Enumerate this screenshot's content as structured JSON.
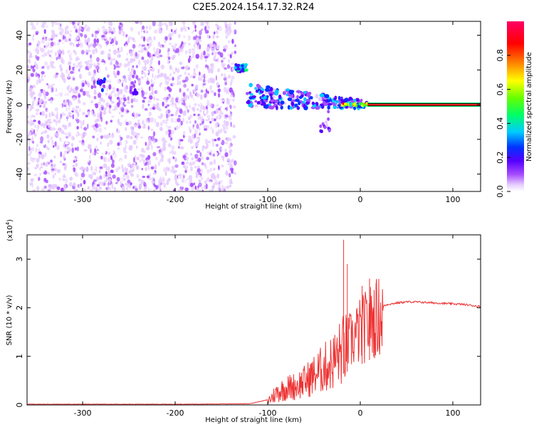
{
  "title": "C2E5.2024.154.17.32.R24",
  "chart_data": [
    {
      "type": "heatmap",
      "xlabel": "Height of straight line (km)",
      "ylabel": "Frequency (Hz)",
      "xlim": [
        -360,
        130
      ],
      "ylim": [
        -50,
        48
      ],
      "xticks": [
        -300,
        -200,
        -100,
        0,
        100
      ],
      "yticks": [
        -40,
        -20,
        0,
        20,
        40
      ],
      "colorbar": {
        "label": "Normalized spectral amplitude",
        "range": [
          0,
          1
        ],
        "ticks": [
          "0.0",
          "0.2",
          "0.4",
          "0.6",
          "0.8"
        ],
        "colors": [
          "#ffffff",
          "#e6ccff",
          "#a64dff",
          "#5500ff",
          "#0033ff",
          "#00ccff",
          "#00ff66",
          "#66ff00",
          "#ffff00",
          "#ff8800",
          "#ff0000",
          "#ff0066"
        ]
      },
      "features": [
        {
          "x_range": [
            -360,
            -135
          ],
          "freq_range": [
            -50,
            48
          ],
          "level": "noise 0.05-0.2"
        },
        {
          "x": -280,
          "freq": 12,
          "level": 0.3
        },
        {
          "x": -245,
          "freq": 8,
          "level": 0.25
        },
        {
          "x_range": [
            -135,
            -122
          ],
          "freq": 21,
          "level": 0.45
        },
        {
          "x_range": [
            -122,
            8
          ],
          "freq_from": 5,
          "freq_to": 0,
          "level": "0.3-0.5"
        },
        {
          "x": -38,
          "freq": -10,
          "level": 0.25
        },
        {
          "x_range": [
            -20,
            8
          ],
          "freq": 0,
          "level": 0.8
        },
        {
          "x_range": [
            8,
            130
          ],
          "freq": 0,
          "level": 0.9
        }
      ]
    },
    {
      "type": "line",
      "xlabel": "Height of straight line (km)",
      "ylabel": "SNR (10 * v/v)",
      "yscale_label": "(x10",
      "yscale_exp": "4",
      "yscale_close": ")",
      "xlim": [
        -360,
        130
      ],
      "ylim": [
        0,
        3.5
      ],
      "xticks": [
        -300,
        -200,
        -100,
        0,
        100
      ],
      "yticks": [
        0,
        1,
        2,
        3
      ],
      "series": [
        {
          "color": "#ee3333",
          "x": [
            -360,
            -200,
            -120,
            -100,
            -90,
            -80,
            -70,
            -60,
            -50,
            -40,
            -30,
            -20,
            -10,
            0,
            10,
            20,
            30,
            40,
            50,
            60,
            70,
            80,
            90,
            100,
            110,
            120,
            130
          ],
          "y": [
            0.01,
            0.01,
            0.02,
            0.1,
            0.3,
            0.4,
            0.45,
            0.55,
            0.7,
            0.85,
            1.0,
            1.25,
            1.45,
            1.65,
            1.85,
            2.0,
            2.07,
            2.1,
            2.12,
            2.12,
            2.11,
            2.1,
            2.09,
            2.08,
            2.07,
            2.05,
            2.02
          ]
        }
      ],
      "spikes": [
        {
          "x": -18,
          "y": 3.4
        },
        {
          "x": -14,
          "y": 2.9
        },
        {
          "x": 2,
          "y": 2.45
        },
        {
          "x": 10,
          "y": 2.6
        }
      ]
    }
  ]
}
